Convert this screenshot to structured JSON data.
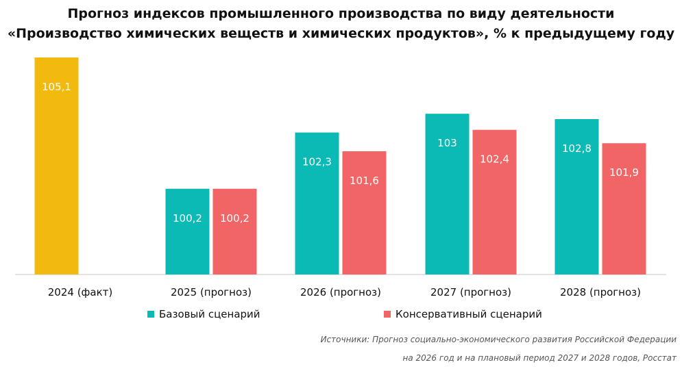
{
  "chart_data": {
    "type": "bar",
    "title_line1": "Прогноз индексов промышленного производства по виду деятельности",
    "title_line2": "«Производство химических веществ и химических продуктов», % к  предыдущему году",
    "categories": [
      "2024 (факт)",
      "2025 (прогноз)",
      "2026 (прогноз)",
      "2027 (прогноз)",
      "2028 (прогноз)"
    ],
    "series": [
      {
        "name": "",
        "color": "#F2B90F",
        "values": [
          105.1,
          null,
          null,
          null,
          null
        ],
        "labels": [
          "105,1",
          null,
          null,
          null,
          null
        ]
      },
      {
        "name": "Базовый сценарий",
        "color": "#0CBAB5",
        "values": [
          null,
          100.2,
          102.3,
          103,
          102.8
        ],
        "labels": [
          null,
          "100,2",
          "102,3",
          "103",
          "102,8"
        ]
      },
      {
        "name": "Консервативный сценарий",
        "color": "#F26566",
        "values": [
          null,
          100.2,
          101.6,
          102.4,
          101.9
        ],
        "labels": [
          null,
          "100,2",
          "101,6",
          "102,4",
          "101,9"
        ]
      }
    ],
    "ylim": [
      97,
      106
    ],
    "grid": false,
    "legend_position": "bottom",
    "source_line1": "Источники: Прогноз социально-экономического развития Российской Федерации",
    "source_line2": "на 2026 год и на плановый период 2027 и 2028 годов, Росстат"
  }
}
